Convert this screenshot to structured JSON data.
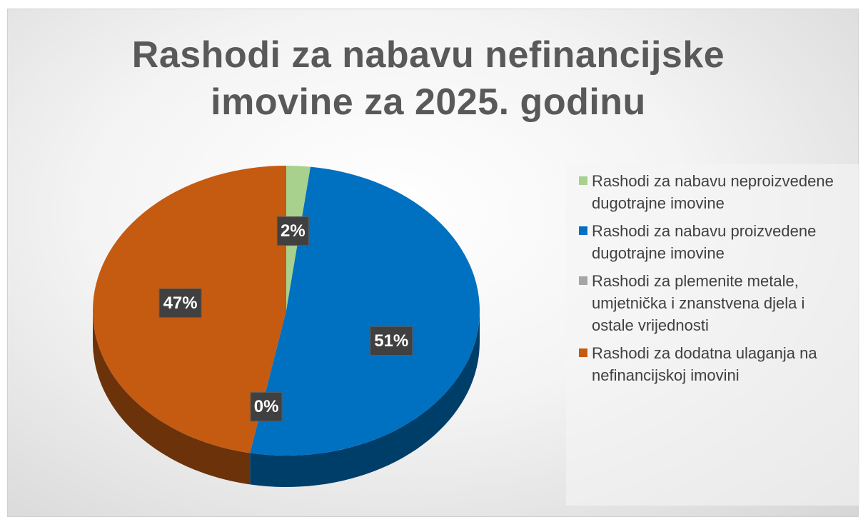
{
  "chart_data": {
    "type": "pie",
    "title": "Rashodi za nabavu nefinancijske imovine  za 2025. godinu",
    "categories": [
      "Rashodi za nabavu neproizvedene dugotrajne imovine",
      "Rashodi za nabavu proizvedene dugotrajne imovine",
      "Rashodi za plemenite metale, umjetnička i znanstvena djela i ostale vrijednosti",
      "Rashodi za dodatna ulaganja na nefinancijskoj imovini"
    ],
    "values": [
      2,
      51,
      0,
      47
    ],
    "value_labels": [
      "2%",
      "51%",
      "0%",
      "47%"
    ],
    "colors": [
      "#a9d18e",
      "#0070c0",
      "#a5a5a5",
      "#c55a11"
    ],
    "legend": "right"
  }
}
